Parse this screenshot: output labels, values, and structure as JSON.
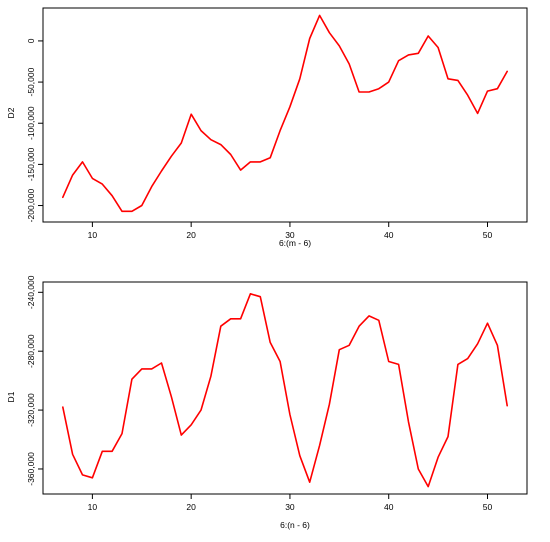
{
  "colors": {
    "series": "#ff0000",
    "axis": "#000000",
    "background": "#ffffff"
  },
  "chart_data": [
    {
      "type": "line",
      "xlabel": "6:(m - 6)",
      "ylabel": "D2",
      "xlim": [
        5,
        54
      ],
      "ylim": [
        -220000,
        40000
      ],
      "x_ticks": [
        10,
        20,
        30,
        40,
        50
      ],
      "y_ticks": [
        -200000,
        -150000,
        -100000,
        -50000,
        0
      ],
      "x_tick_labels": [
        "10",
        "20",
        "30",
        "40",
        "50"
      ],
      "y_tick_labels": [
        "-200,000",
        "-150,000",
        "-100,000",
        "-50,000",
        "0"
      ],
      "grid": false,
      "series": [
        {
          "color": "#ff0000",
          "x": [
            7,
            8,
            9,
            10,
            11,
            12,
            13,
            14,
            15,
            16,
            17,
            18,
            19,
            20,
            21,
            22,
            23,
            24,
            25,
            26,
            27,
            28,
            29,
            30,
            31,
            32,
            33,
            34,
            35,
            36,
            37,
            38,
            39,
            40,
            41,
            42,
            43,
            44,
            45,
            46,
            47,
            48,
            49,
            50,
            51,
            52
          ],
          "y": [
            -190000,
            -163000,
            -147000,
            -167000,
            -174000,
            -188000,
            -207000,
            -207000,
            -200000,
            -177000,
            -158000,
            -140000,
            -124000,
            -89000,
            -109000,
            -120000,
            -126000,
            -138000,
            -157000,
            -147000,
            -147000,
            -142000,
            -109000,
            -80000,
            -46000,
            3000,
            31000,
            10000,
            -6000,
            -28000,
            -62000,
            -62000,
            -58000,
            -50000,
            -24000,
            -17000,
            -15000,
            6000,
            -8000,
            -46000,
            -48000,
            -66000,
            -88000,
            -61000,
            -58000,
            -37000
          ]
        }
      ]
    },
    {
      "type": "line",
      "xlabel": "6:(n - 6)",
      "ylabel": "D1",
      "xlim": [
        5,
        54
      ],
      "ylim": [
        -377000,
        -233000
      ],
      "x_ticks": [
        10,
        20,
        30,
        40,
        50
      ],
      "y_ticks": [
        -360000,
        -320000,
        -280000,
        -240000
      ],
      "x_tick_labels": [
        "10",
        "20",
        "30",
        "40",
        "50"
      ],
      "y_tick_labels": [
        "-360,000",
        "-320,000",
        "-280,000",
        "-240,000"
      ],
      "grid": false,
      "series": [
        {
          "color": "#ff0000",
          "x": [
            7,
            8,
            9,
            10,
            11,
            12,
            13,
            14,
            15,
            16,
            17,
            18,
            19,
            20,
            21,
            22,
            23,
            24,
            25,
            26,
            27,
            28,
            29,
            30,
            31,
            32,
            33,
            34,
            35,
            36,
            37,
            38,
            39,
            40,
            41,
            42,
            43,
            44,
            45,
            46,
            47,
            48,
            49,
            50,
            51,
            52
          ],
          "y": [
            -318000,
            -350000,
            -364000,
            -366000,
            -348000,
            -348000,
            -336000,
            -299000,
            -292000,
            -292000,
            -288000,
            -311000,
            -337000,
            -330000,
            -320000,
            -297000,
            -263000,
            -258000,
            -258000,
            -241000,
            -243000,
            -274000,
            -287000,
            -323000,
            -351000,
            -369000,
            -344000,
            -316000,
            -279000,
            -276000,
            -263000,
            -256000,
            -259000,
            -287000,
            -289000,
            -328000,
            -360000,
            -372000,
            -352000,
            -338000,
            -289000,
            -285000,
            -275000,
            -261000,
            -276000,
            -317000
          ]
        }
      ]
    }
  ]
}
